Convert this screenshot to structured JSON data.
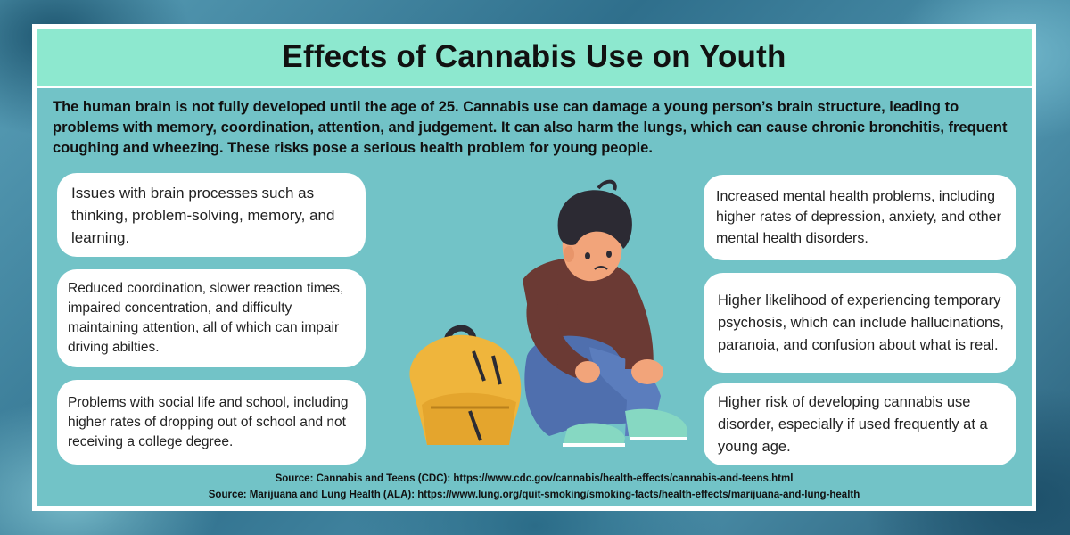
{
  "title": "Effects of Cannabis Use on Youth",
  "intro": "The human brain is not fully developed until the age of 25. Cannabis use can damage a young person’s brain structure, leading to problems with memory, coordination, attention, and judgement. It can also harm the lungs, which can cause chronic bronchitis, frequent coughing and wheezing. These risks pose a serious health problem for young people.",
  "left_cards": [
    "Issues with brain processes such as thinking, problem-solving, memory, and learning.",
    "Reduced coordination, slower reaction times, impaired concentration, and difficulty maintaining attention, all of which can impair driving abilties.",
    "Problems with social life and school, including higher rates of dropping out of school and not receiving a college degree."
  ],
  "right_cards": [
    "Increased mental health problems, including higher rates of depression, anxiety, and other mental health disorders.",
    "Higher likelihood of experiencing temporary psychosis, which can include hallucinations, paranoia, and confusion about what is real.",
    "Higher risk of developing cannabis use disorder, especially if used frequently at a young age."
  ],
  "sources": [
    "Source: Cannabis and Teens (CDC):  https://www.cdc.gov/cannabis/health-effects/cannabis-and-teens.html",
    "Source: Marijuana and Lung Health (ALA): https://www.lung.org/quit-smoking/smoking-facts/health-effects/marijuana-and-lung-health"
  ],
  "colors": {
    "title_bar": "#8de8cf",
    "panel": "#72c3c7",
    "card": "#ffffff",
    "backpack": "#efb53c",
    "shirt": "#6b3a34",
    "jeans": "#4f6fae",
    "shoes": "#86d8c2",
    "hair": "#2c2a33",
    "skin": "#f2a47a"
  },
  "illustration": "sad-teen-with-backpack"
}
